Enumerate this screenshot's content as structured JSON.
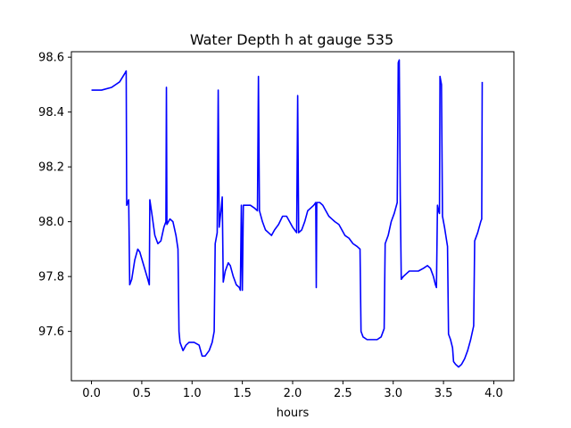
{
  "chart_data": {
    "type": "line",
    "title": "Water Depth h at gauge 535",
    "xlabel": "hours",
    "ylabel": "",
    "xlim": [
      -0.2,
      4.2
    ],
    "ylim": [
      97.42,
      98.62
    ],
    "xticks": [
      0.0,
      0.5,
      1.0,
      1.5,
      2.0,
      2.5,
      3.0,
      3.5,
      4.0
    ],
    "xtick_labels": [
      "0.0",
      "0.5",
      "1.0",
      "1.5",
      "2.0",
      "2.5",
      "3.0",
      "3.5",
      "4.0"
    ],
    "yticks": [
      97.6,
      97.8,
      98.0,
      98.2,
      98.4,
      98.6
    ],
    "ytick_labels": [
      "97.6",
      "97.8",
      "98.0",
      "98.2",
      "98.4",
      "98.6"
    ],
    "grid": false,
    "series": [
      {
        "color": "#0000ff",
        "points": [
          [
            0.0,
            98.48
          ],
          [
            0.1,
            98.48
          ],
          [
            0.2,
            98.49
          ],
          [
            0.28,
            98.51
          ],
          [
            0.33,
            98.54
          ],
          [
            0.345,
            98.55
          ],
          [
            0.35,
            98.06
          ],
          [
            0.36,
            98.07
          ],
          [
            0.37,
            98.08
          ],
          [
            0.38,
            97.77
          ],
          [
            0.4,
            97.79
          ],
          [
            0.43,
            97.86
          ],
          [
            0.46,
            97.9
          ],
          [
            0.48,
            97.89
          ],
          [
            0.52,
            97.84
          ],
          [
            0.56,
            97.79
          ],
          [
            0.575,
            97.77
          ],
          [
            0.58,
            98.08
          ],
          [
            0.6,
            98.03
          ],
          [
            0.63,
            97.95
          ],
          [
            0.66,
            97.92
          ],
          [
            0.69,
            97.93
          ],
          [
            0.72,
            97.98
          ],
          [
            0.74,
            98.0
          ],
          [
            0.745,
            98.49
          ],
          [
            0.75,
            97.99
          ],
          [
            0.78,
            98.01
          ],
          [
            0.81,
            98.0
          ],
          [
            0.84,
            97.95
          ],
          [
            0.86,
            97.9
          ],
          [
            0.87,
            97.6
          ],
          [
            0.88,
            97.56
          ],
          [
            0.91,
            97.53
          ],
          [
            0.94,
            97.55
          ],
          [
            0.97,
            97.56
          ],
          [
            1.02,
            97.56
          ],
          [
            1.07,
            97.55
          ],
          [
            1.1,
            97.51
          ],
          [
            1.13,
            97.51
          ],
          [
            1.17,
            97.53
          ],
          [
            1.2,
            97.56
          ],
          [
            1.22,
            97.6
          ],
          [
            1.23,
            97.92
          ],
          [
            1.25,
            97.96
          ],
          [
            1.26,
            98.48
          ],
          [
            1.27,
            97.98
          ],
          [
            1.29,
            98.05
          ],
          [
            1.3,
            98.09
          ],
          [
            1.31,
            97.78
          ],
          [
            1.33,
            97.82
          ],
          [
            1.36,
            97.85
          ],
          [
            1.38,
            97.84
          ],
          [
            1.41,
            97.8
          ],
          [
            1.44,
            97.77
          ],
          [
            1.47,
            97.76
          ],
          [
            1.48,
            97.75
          ],
          [
            1.49,
            98.06
          ],
          [
            1.5,
            97.75
          ],
          [
            1.51,
            98.06
          ],
          [
            1.54,
            98.06
          ],
          [
            1.58,
            98.06
          ],
          [
            1.62,
            98.05
          ],
          [
            1.65,
            98.04
          ],
          [
            1.66,
            98.53
          ],
          [
            1.67,
            98.04
          ],
          [
            1.7,
            98.0
          ],
          [
            1.73,
            97.97
          ],
          [
            1.76,
            97.96
          ],
          [
            1.79,
            97.95
          ],
          [
            1.82,
            97.97
          ],
          [
            1.86,
            97.99
          ],
          [
            1.9,
            98.02
          ],
          [
            1.94,
            98.02
          ],
          [
            1.97,
            98.0
          ],
          [
            2.0,
            97.98
          ],
          [
            2.02,
            97.97
          ],
          [
            2.04,
            97.96
          ],
          [
            2.05,
            98.46
          ],
          [
            2.06,
            97.96
          ],
          [
            2.09,
            97.97
          ],
          [
            2.12,
            98.0
          ],
          [
            2.15,
            98.04
          ],
          [
            2.18,
            98.05
          ],
          [
            2.21,
            98.06
          ],
          [
            2.23,
            98.07
          ],
          [
            2.235,
            97.76
          ],
          [
            2.24,
            98.07
          ],
          [
            2.27,
            98.07
          ],
          [
            2.3,
            98.06
          ],
          [
            2.33,
            98.04
          ],
          [
            2.36,
            98.02
          ],
          [
            2.39,
            98.01
          ],
          [
            2.42,
            98.0
          ],
          [
            2.46,
            97.99
          ],
          [
            2.49,
            97.97
          ],
          [
            2.52,
            97.95
          ],
          [
            2.56,
            97.94
          ],
          [
            2.6,
            97.92
          ],
          [
            2.64,
            97.91
          ],
          [
            2.67,
            97.9
          ],
          [
            2.68,
            97.6
          ],
          [
            2.7,
            97.58
          ],
          [
            2.74,
            97.57
          ],
          [
            2.78,
            97.57
          ],
          [
            2.84,
            97.57
          ],
          [
            2.88,
            97.58
          ],
          [
            2.91,
            97.61
          ],
          [
            2.92,
            97.92
          ],
          [
            2.95,
            97.95
          ],
          [
            2.98,
            98.0
          ],
          [
            3.01,
            98.03
          ],
          [
            3.04,
            98.07
          ],
          [
            3.05,
            98.58
          ],
          [
            3.06,
            98.59
          ],
          [
            3.07,
            98.1
          ],
          [
            3.08,
            97.79
          ],
          [
            3.1,
            97.8
          ],
          [
            3.13,
            97.81
          ],
          [
            3.16,
            97.82
          ],
          [
            3.2,
            97.82
          ],
          [
            3.25,
            97.82
          ],
          [
            3.3,
            97.83
          ],
          [
            3.34,
            97.84
          ],
          [
            3.37,
            97.83
          ],
          [
            3.4,
            97.8
          ],
          [
            3.42,
            97.77
          ],
          [
            3.43,
            97.76
          ],
          [
            3.44,
            98.06
          ],
          [
            3.45,
            98.04
          ],
          [
            3.46,
            98.03
          ],
          [
            3.465,
            98.53
          ],
          [
            3.48,
            98.5
          ],
          [
            3.49,
            98.02
          ],
          [
            3.51,
            97.98
          ],
          [
            3.54,
            97.91
          ],
          [
            3.55,
            97.59
          ],
          [
            3.57,
            97.57
          ],
          [
            3.59,
            97.54
          ],
          [
            3.6,
            97.49
          ],
          [
            3.62,
            97.48
          ],
          [
            3.65,
            97.47
          ],
          [
            3.68,
            97.48
          ],
          [
            3.71,
            97.5
          ],
          [
            3.74,
            97.53
          ],
          [
            3.77,
            97.57
          ],
          [
            3.8,
            97.62
          ],
          [
            3.81,
            97.93
          ],
          [
            3.84,
            97.96
          ],
          [
            3.87,
            98.0
          ],
          [
            3.88,
            98.01
          ],
          [
            3.885,
            98.51
          ]
        ]
      }
    ]
  }
}
